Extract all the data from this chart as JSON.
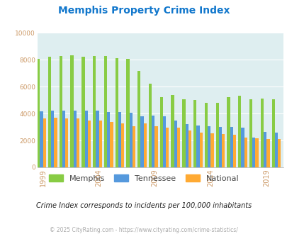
{
  "title": "Memphis Property Crime Index",
  "years": [
    1999,
    2000,
    2001,
    2002,
    2003,
    2004,
    2005,
    2006,
    2007,
    2008,
    2009,
    2010,
    2011,
    2012,
    2013,
    2014,
    2015,
    2016,
    2017,
    2018,
    2019,
    2020
  ],
  "memphis": [
    8050,
    8200,
    8250,
    8350,
    8200,
    8250,
    8250,
    8100,
    8050,
    7150,
    6200,
    5200,
    5350,
    5050,
    5000,
    4800,
    4800,
    5200,
    5300,
    5050,
    5100,
    5050
  ],
  "tennessee": [
    4150,
    4200,
    4200,
    4200,
    4200,
    4200,
    4100,
    4100,
    4050,
    3800,
    3850,
    3800,
    3500,
    3200,
    3100,
    3050,
    3000,
    3000,
    2950,
    2200,
    2650,
    2600
  ],
  "national": [
    3650,
    3700,
    3650,
    3650,
    3500,
    3500,
    3350,
    3250,
    3050,
    3250,
    3050,
    2950,
    2950,
    2750,
    2600,
    2550,
    2450,
    2400,
    2200,
    2150,
    2100,
    2100
  ],
  "memphis_color": "#88cc44",
  "tennessee_color": "#5599dd",
  "national_color": "#ffaa33",
  "bg_color": "#deeef0",
  "title_color": "#1177cc",
  "ylim": [
    0,
    10000
  ],
  "yticks": [
    0,
    2000,
    4000,
    6000,
    8000,
    10000
  ],
  "xlabel_ticks": [
    1999,
    2004,
    2009,
    2014,
    2019
  ],
  "subtitle": "Crime Index corresponds to incidents per 100,000 inhabitants",
  "footer": "© 2025 CityRating.com - https://www.cityrating.com/crime-statistics/",
  "bar_width": 0.27,
  "tick_color": "#cc9966",
  "grid_color": "#ffffff"
}
